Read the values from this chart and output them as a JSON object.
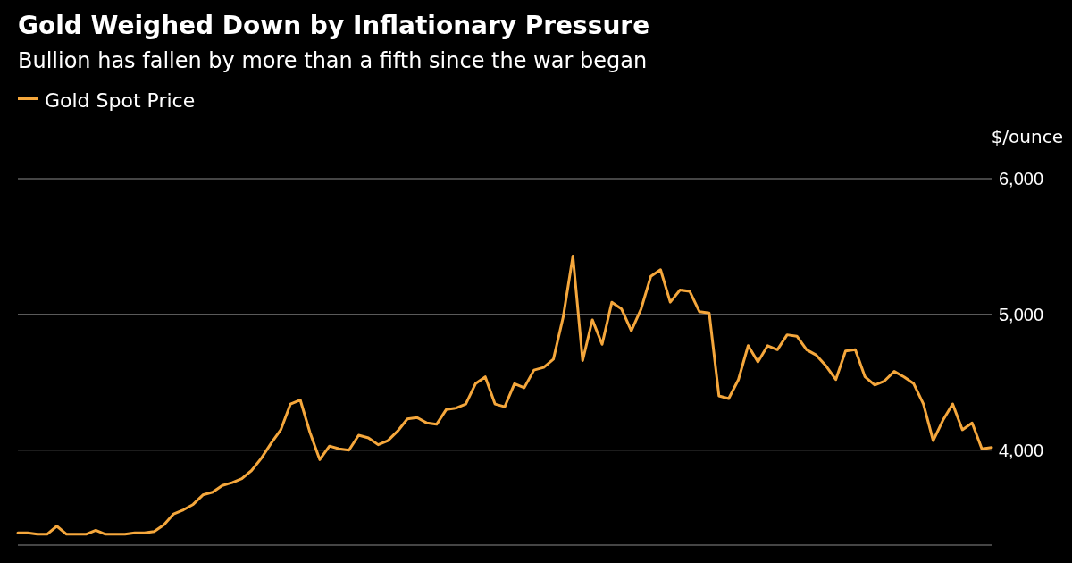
{
  "chart_data": {
    "type": "line",
    "title": "Gold Weighed Down by Inflationary Pressure",
    "subtitle": "Bullion has fallen by more than a fifth since the war began",
    "ylabel": "$/ounce",
    "categories": [
      null,
      null,
      null,
      null,
      null,
      null,
      null,
      null,
      null,
      null,
      null,
      null,
      null,
      null,
      null,
      null,
      null,
      null,
      null,
      null,
      null,
      null,
      null,
      null,
      null,
      null,
      null,
      null,
      null,
      null,
      null,
      null,
      null,
      null,
      null,
      null,
      null,
      null,
      null,
      null,
      null,
      null,
      null,
      null,
      null,
      null,
      null,
      null,
      null,
      null,
      null,
      null,
      null,
      null,
      null,
      null,
      null,
      null,
      null,
      null,
      null,
      null,
      null,
      null,
      null,
      null,
      null,
      null,
      null,
      null,
      null,
      null,
      null,
      null,
      null,
      null,
      null,
      null,
      null,
      null,
      null,
      null,
      null,
      null,
      null,
      null,
      null,
      null,
      null,
      null,
      null,
      null,
      null,
      null,
      null,
      null,
      null,
      null,
      null,
      null,
      null
    ],
    "series": [
      {
        "name": "Gold Spot Price",
        "color": "#f5a73c",
        "values": [
          3390,
          3390,
          3380,
          3380,
          3440,
          3380,
          3380,
          3380,
          3410,
          3380,
          3380,
          3380,
          3390,
          3390,
          3400,
          3450,
          3530,
          3560,
          3600,
          3670,
          3690,
          3740,
          3760,
          3790,
          3850,
          3940,
          4050,
          4150,
          4340,
          4370,
          4130,
          3930,
          4030,
          4010,
          4000,
          4110,
          4090,
          4040,
          4070,
          4140,
          4230,
          4240,
          4200,
          4190,
          4300,
          4310,
          4340,
          4490,
          4540,
          4340,
          4320,
          4490,
          4460,
          4590,
          4610,
          4670,
          4980,
          5430,
          4660,
          4960,
          4780,
          5090,
          5040,
          4880,
          5040,
          5280,
          5330,
          5090,
          5180,
          5170,
          5020,
          5010,
          4400,
          4380,
          4520,
          4770,
          4650,
          4770,
          4740,
          4850,
          4840,
          4740,
          4700,
          4620,
          4520,
          4730,
          4740,
          4540,
          4480,
          4510,
          4580,
          4540,
          4490,
          4340,
          4070,
          4220,
          4340,
          4150,
          4200,
          4010,
          4020
        ]
      }
    ],
    "ylim": [
      3300,
      6000
    ],
    "yticks": [
      {
        "value": 4000,
        "label": "4,000"
      },
      {
        "value": 5000,
        "label": "5,000"
      },
      {
        "value": 6000,
        "label": "6,000"
      }
    ],
    "grid": "y",
    "legend": "top left",
    "line_style": "solid"
  }
}
